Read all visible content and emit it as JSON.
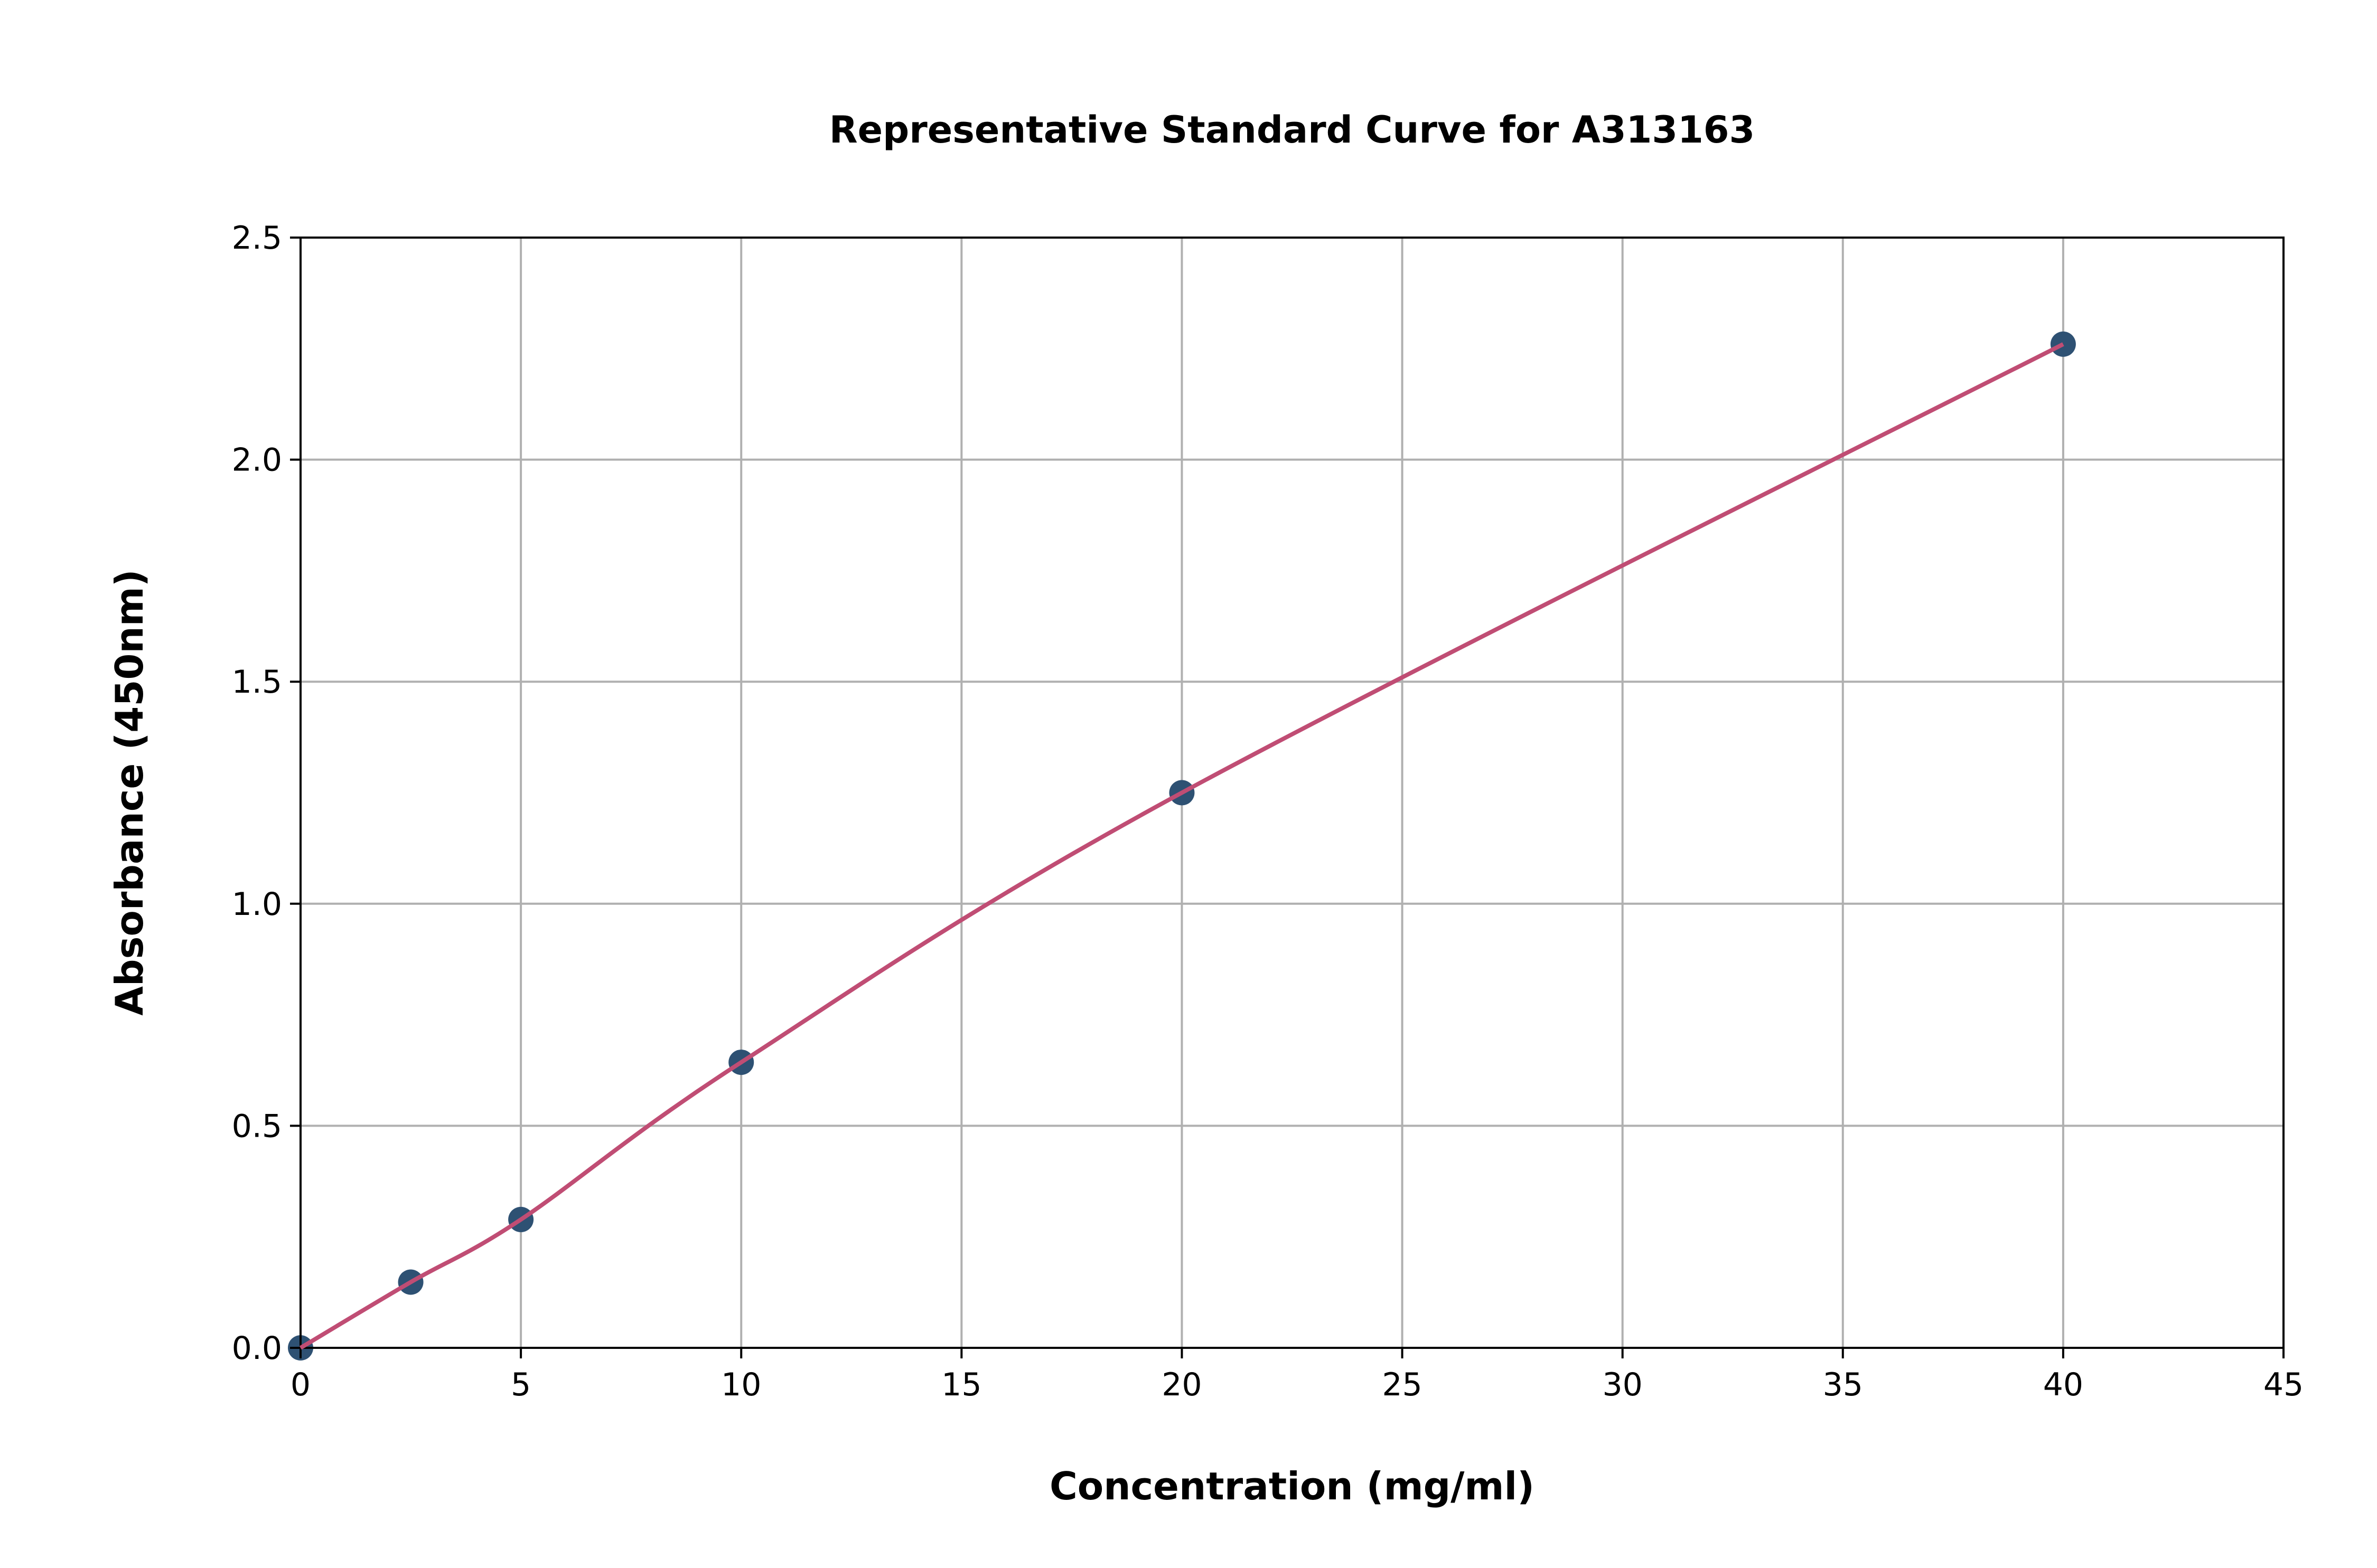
{
  "chart_data": {
    "type": "scatter",
    "title": "Representative Standard Curve for A313163",
    "xlabel": "Concentration (mg/ml)",
    "ylabel": "Absorbance (450nm)",
    "xlim": [
      0,
      45
    ],
    "ylim": [
      0,
      2.5
    ],
    "xticks": [
      "0",
      "5",
      "10",
      "15",
      "20",
      "25",
      "30",
      "35",
      "40",
      "45"
    ],
    "yticks": [
      "0.0",
      "0.5",
      "1.0",
      "1.5",
      "2.0",
      "2.5"
    ],
    "grid": true,
    "series": [
      {
        "x": [
          0,
          2.5,
          5,
          10,
          20,
          40
        ],
        "y": [
          0.0,
          0.148,
          0.289,
          0.643,
          1.25,
          2.26
        ],
        "marker_color": "#2e5173",
        "fit_line_color": "#c04d74"
      }
    ]
  }
}
